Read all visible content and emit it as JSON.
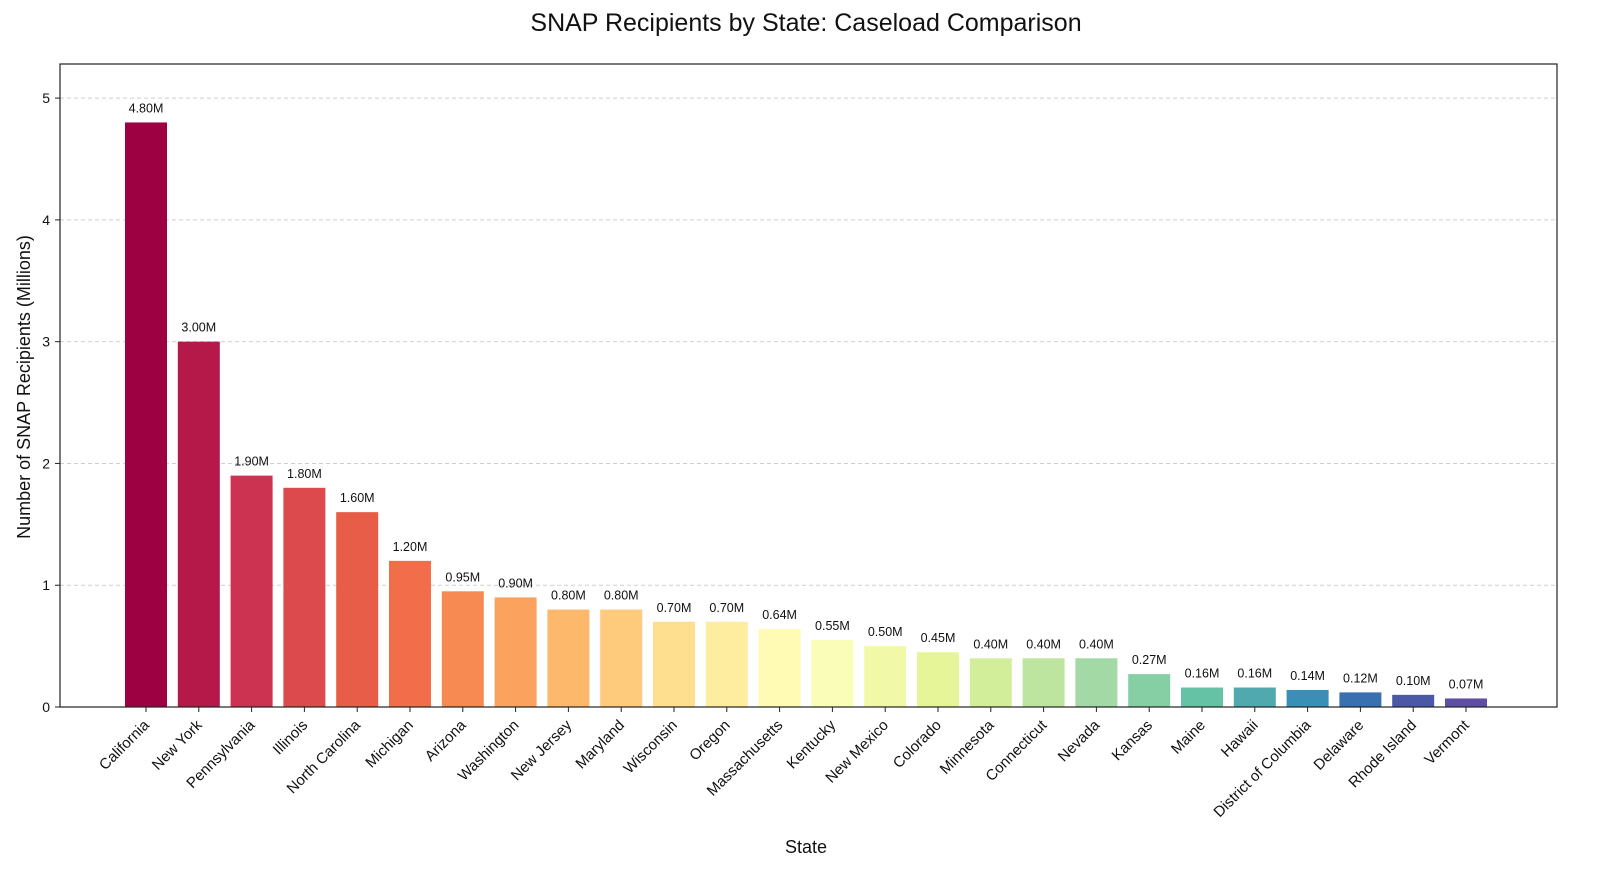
{
  "chart_data": {
    "type": "bar",
    "title": "SNAP Recipients by State: Caseload Comparison",
    "xlabel": "State",
    "ylabel": "Number of SNAP Recipients (Millions)",
    "ylim": [
      0,
      5.28
    ],
    "yticks": [
      0,
      1,
      2,
      3,
      4,
      5
    ],
    "grid": "y-dashed",
    "categories": [
      "California",
      "New York",
      "Pennsylvania",
      "Illinois",
      "North Carolina",
      "Michigan",
      "Arizona",
      "Washington",
      "New Jersey",
      "Maryland",
      "Wisconsin",
      "Oregon",
      "Massachusetts",
      "Kentucky",
      "New Mexico",
      "Colorado",
      "Minnesota",
      "Connecticut",
      "Nevada",
      "Kansas",
      "Maine",
      "Hawaii",
      "District of Columbia",
      "Delaware",
      "Rhode Island",
      "Vermont"
    ],
    "values": [
      4.8,
      3.0,
      1.9,
      1.8,
      1.6,
      1.2,
      0.95,
      0.9,
      0.8,
      0.8,
      0.7,
      0.7,
      0.64,
      0.55,
      0.5,
      0.45,
      0.4,
      0.4,
      0.4,
      0.27,
      0.16,
      0.16,
      0.14,
      0.12,
      0.1,
      0.07
    ],
    "data_labels": [
      "4.80M",
      "3.00M",
      "1.90M",
      "1.80M",
      "1.60M",
      "1.20M",
      "0.95M",
      "0.90M",
      "0.80M",
      "0.80M",
      "0.70M",
      "0.70M",
      "0.64M",
      "0.55M",
      "0.50M",
      "0.45M",
      "0.40M",
      "0.40M",
      "0.40M",
      "0.27M",
      "0.16M",
      "0.16M",
      "0.14M",
      "0.12M",
      "0.10M",
      "0.07M"
    ],
    "colors": [
      "#9e0142",
      "#b5194a",
      "#cc3351",
      "#dc4a4d",
      "#e85d47",
      "#f26d4a",
      "#f78a53",
      "#faa25e",
      "#fdb86b",
      "#fecb7c",
      "#fedf8f",
      "#feec9f",
      "#fffbb5",
      "#fafdb8",
      "#f1f9a9",
      "#e6f598",
      "#d3ee9b",
      "#bde5a0",
      "#a2d9a4",
      "#86cfa5",
      "#65c2a5",
      "#50a9ae",
      "#3a8fb7",
      "#3970b0",
      "#4b58a6",
      "#5e4fa2"
    ]
  }
}
